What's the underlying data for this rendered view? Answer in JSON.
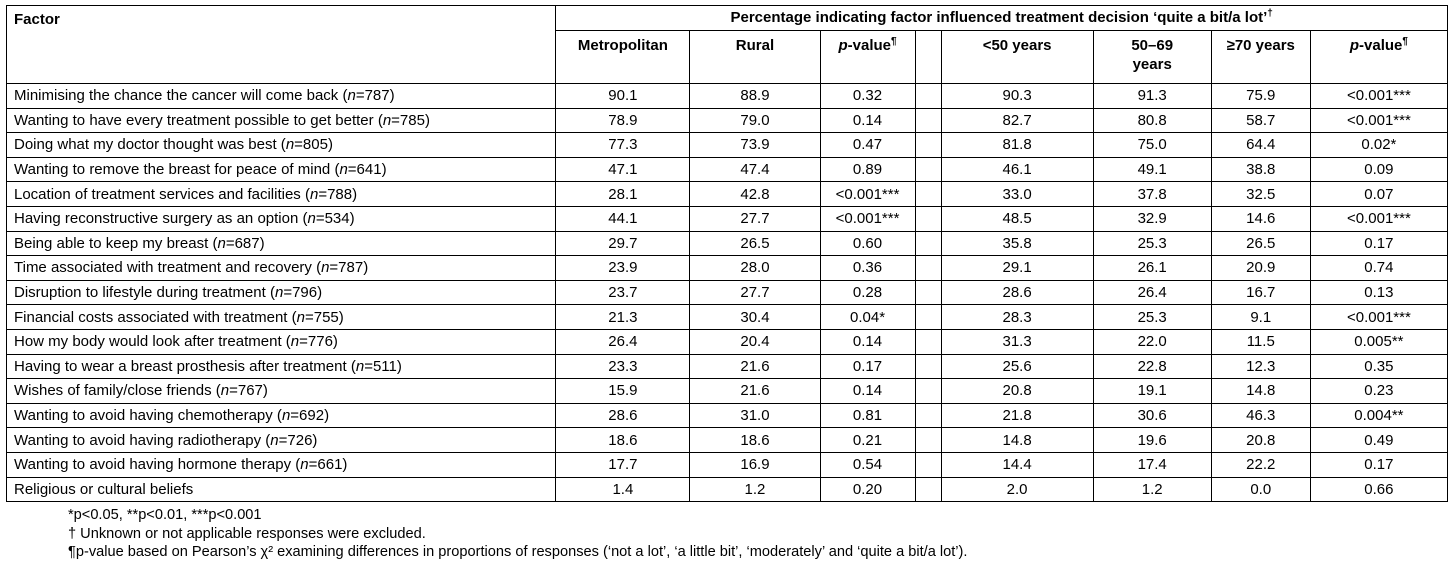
{
  "table": {
    "n_symbol": "n",
    "headers": {
      "factor": "Factor",
      "span_title": "Percentage indicating factor influenced treatment decision ‘quite a bit/a lot’",
      "span_title_sup": "†",
      "metro": "Metropolitan",
      "rural": "Rural",
      "p_italic": "p",
      "p_rest": "-value",
      "p_sup": "¶",
      "lt50": "<50 years",
      "y50_69": "50–69 years",
      "ge70": "≥70 years"
    },
    "rows": [
      {
        "factor": "Minimising the chance the cancer will come back",
        "n": "787",
        "metro": "90.1",
        "rural": "88.9",
        "p_region": "0.32",
        "lt50": "90.3",
        "y50_69": "91.3",
        "ge70": "75.9",
        "p_age": "<0.001***"
      },
      {
        "factor": "Wanting to have every treatment possible to get better",
        "n": "785",
        "metro": "78.9",
        "rural": "79.0",
        "p_region": "0.14",
        "lt50": "82.7",
        "y50_69": "80.8",
        "ge70": "58.7",
        "p_age": "<0.001***"
      },
      {
        "factor": "Doing what my doctor thought was best",
        "n": "805",
        "metro": "77.3",
        "rural": "73.9",
        "p_region": "0.47",
        "lt50": "81.8",
        "y50_69": "75.0",
        "ge70": "64.4",
        "p_age": "0.02*"
      },
      {
        "factor": "Wanting to remove the breast for peace of mind",
        "n": "641",
        "metro": "47.1",
        "rural": "47.4",
        "p_region": "0.89",
        "lt50": "46.1",
        "y50_69": "49.1",
        "ge70": "38.8",
        "p_age": "0.09"
      },
      {
        "factor": "Location of treatment services and facilities",
        "n": "788",
        "metro": "28.1",
        "rural": "42.8",
        "p_region": "<0.001***",
        "lt50": "33.0",
        "y50_69": "37.8",
        "ge70": "32.5",
        "p_age": "0.07"
      },
      {
        "factor": "Having reconstructive surgery as an option",
        "n": "534",
        "metro": "44.1",
        "rural": "27.7",
        "p_region": "<0.001***",
        "lt50": "48.5",
        "y50_69": "32.9",
        "ge70": "14.6",
        "p_age": "<0.001***"
      },
      {
        "factor": "Being able to keep my breast",
        "n": "687",
        "metro": "29.7",
        "rural": "26.5",
        "p_region": "0.60",
        "lt50": "35.8",
        "y50_69": "25.3",
        "ge70": "26.5",
        "p_age": "0.17"
      },
      {
        "factor": "Time associated with treatment and recovery",
        "n": "787",
        "metro": "23.9",
        "rural": "28.0",
        "p_region": "0.36",
        "lt50": "29.1",
        "y50_69": "26.1",
        "ge70": "20.9",
        "p_age": "0.74"
      },
      {
        "factor": "Disruption to lifestyle during treatment",
        "n": "796",
        "metro": "23.7",
        "rural": "27.7",
        "p_region": "0.28",
        "lt50": "28.6",
        "y50_69": "26.4",
        "ge70": "16.7",
        "p_age": "0.13"
      },
      {
        "factor": "Financial costs associated with treatment",
        "n": "755",
        "metro": "21.3",
        "rural": "30.4",
        "p_region": "0.04*",
        "lt50": "28.3",
        "y50_69": "25.3",
        "ge70": "9.1",
        "p_age": "<0.001***"
      },
      {
        "factor": "How my body would look after treatment",
        "n": "776",
        "metro": "26.4",
        "rural": "20.4",
        "p_region": "0.14",
        "lt50": "31.3",
        "y50_69": "22.0",
        "ge70": "11.5",
        "p_age": "0.005**"
      },
      {
        "factor": "Having to wear a breast prosthesis after treatment",
        "n": "511",
        "metro": "23.3",
        "rural": "21.6",
        "p_region": "0.17",
        "lt50": "25.6",
        "y50_69": "22.8",
        "ge70": "12.3",
        "p_age": "0.35"
      },
      {
        "factor": "Wishes of family/close friends",
        "n": "767",
        "metro": "15.9",
        "rural": "21.6",
        "p_region": "0.14",
        "lt50": "20.8",
        "y50_69": "19.1",
        "ge70": "14.8",
        "p_age": "0.23"
      },
      {
        "factor": "Wanting to avoid having chemotherapy",
        "n": "692",
        "metro": "28.6",
        "rural": "31.0",
        "p_region": "0.81",
        "lt50": "21.8",
        "y50_69": "30.6",
        "ge70": "46.3",
        "p_age": "0.004**"
      },
      {
        "factor": "Wanting to avoid having radiotherapy",
        "n": "726",
        "metro": "18.6",
        "rural": "18.6",
        "p_region": "0.21",
        "lt50": "14.8",
        "y50_69": "19.6",
        "ge70": "20.8",
        "p_age": "0.49"
      },
      {
        "factor": "Wanting to avoid having hormone therapy",
        "n": "661",
        "metro": "17.7",
        "rural": "16.9",
        "p_region": "0.54",
        "lt50": "14.4",
        "y50_69": "17.4",
        "ge70": "22.2",
        "p_age": "0.17"
      },
      {
        "factor": "Religious or cultural beliefs",
        "n": null,
        "metro": "1.4",
        "rural": "1.2",
        "p_region": "0.20",
        "lt50": "2.0",
        "y50_69": "1.2",
        "ge70": "0.0",
        "p_age": "0.66"
      }
    ]
  },
  "footnotes": [
    "*p<0.05, **p<0.01, ***p<0.001",
    "† Unknown or not applicable responses were excluded.",
    "¶p-value based on Pearson’s χ² examining differences in proportions of responses (‘not a lot’, ‘a little bit’, ‘moderately’ and ‘quite a bit/a lot’)."
  ]
}
